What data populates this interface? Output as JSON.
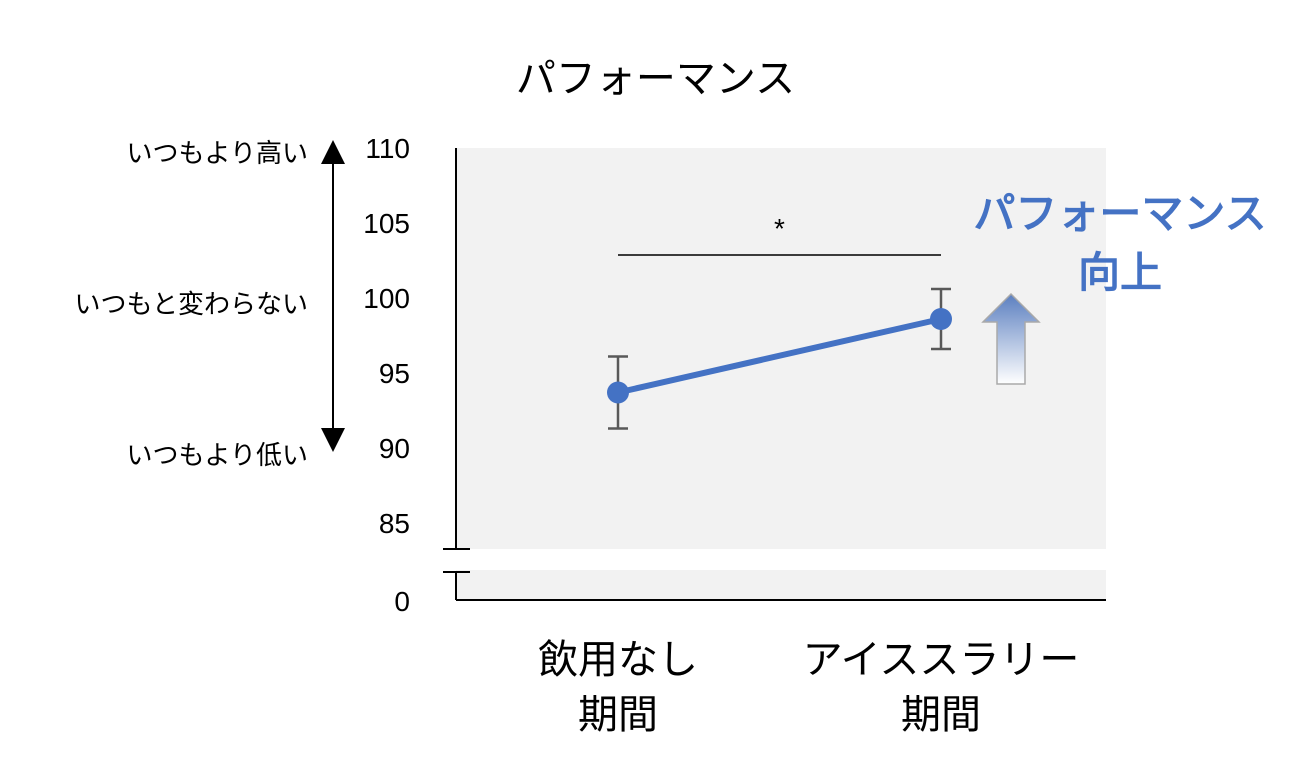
{
  "chart_data": {
    "type": "line",
    "title": "パフォーマンス",
    "xlabel": "",
    "ylabel": "",
    "categories": [
      [
        "飲用なし",
        "期間"
      ],
      [
        "アイススラリー",
        "期間"
      ]
    ],
    "series": [
      {
        "values": [
          93.7,
          98.6
        ],
        "error_low": [
          91.3,
          96.6
        ],
        "error_high": [
          96.1,
          100.6
        ],
        "color": "#4472c4"
      }
    ],
    "yticks": [
      0,
      85,
      90,
      95,
      100,
      105,
      110
    ],
    "ylim": [
      85,
      110
    ],
    "y_axis_break": true,
    "grid": false,
    "plot_background": "#f2f2f2",
    "significance": {
      "label": "*",
      "between": [
        0,
        1
      ]
    },
    "side_scale": {
      "top": "いつもより高い",
      "middle": "いつもと変わらない",
      "bottom": "いつもより低い"
    },
    "annotation": {
      "lines": [
        "パフォーマンス",
        "向上"
      ],
      "color": "#4472c4",
      "icon": "up-arrow-icon"
    }
  }
}
